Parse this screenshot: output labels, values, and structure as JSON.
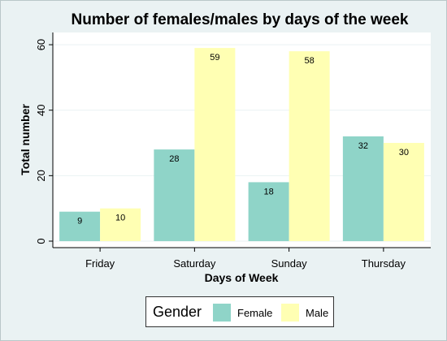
{
  "chart_data": {
    "type": "bar",
    "title": "Number of females/males by days of the week",
    "xlabel": "Days of Week",
    "ylabel": "Total number",
    "categories": [
      "Friday",
      "Saturday",
      "Sunday",
      "Thursday"
    ],
    "series": [
      {
        "name": "Female",
        "values": [
          9,
          28,
          18,
          32
        ],
        "color": "#8fd4c8"
      },
      {
        "name": "Male",
        "values": [
          10,
          59,
          58,
          30
        ],
        "color": "#ffffb3"
      }
    ],
    "ylim": [
      0,
      62
    ],
    "yticks": [
      0,
      20,
      40,
      60
    ],
    "grid": true,
    "legend": {
      "title": "Gender",
      "position": "bottom"
    }
  },
  "colors": {
    "background": "#eaf2f3",
    "plot_background": "#ffffff",
    "grid": "#eaf2f3"
  }
}
